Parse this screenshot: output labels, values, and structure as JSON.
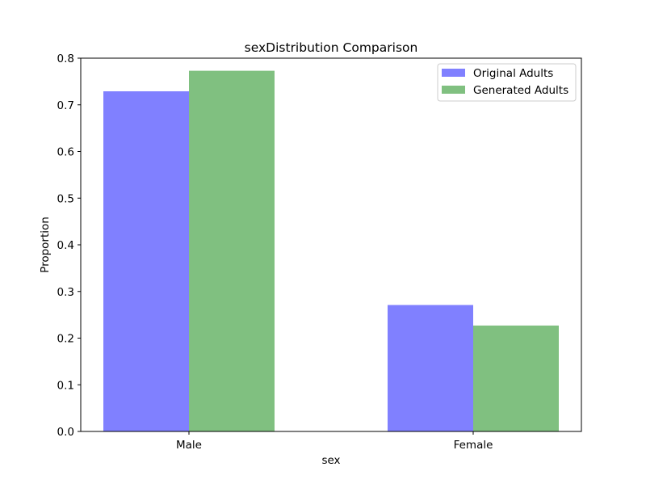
{
  "chart_data": {
    "type": "bar",
    "title": "sexDistribution Comparison",
    "xlabel": "sex",
    "ylabel": "Proportion",
    "categories": [
      "Male",
      "Female"
    ],
    "series": [
      {
        "name": "Original Adults",
        "values": [
          0.729,
          0.271
        ],
        "color": "#8080ff"
      },
      {
        "name": "Generated Adults",
        "values": [
          0.773,
          0.227
        ],
        "color": "#80c080"
      }
    ],
    "ylim": [
      0,
      0.8
    ],
    "yticks": [
      "0.0",
      "0.1",
      "0.2",
      "0.3",
      "0.4",
      "0.5",
      "0.6",
      "0.7",
      "0.8"
    ],
    "grid": false,
    "legend_position": "top-right"
  }
}
